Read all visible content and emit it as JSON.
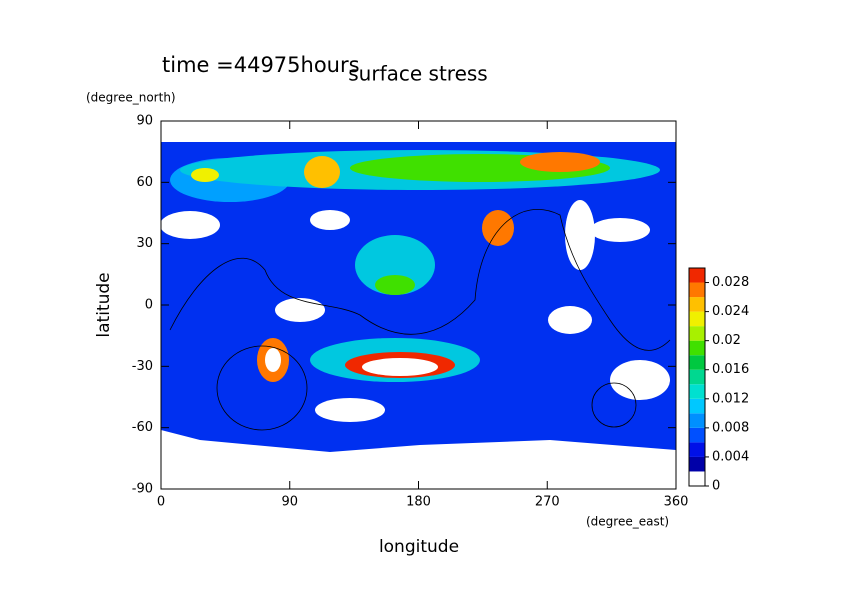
{
  "chart_data": {
    "type": "contour",
    "title": "surface stress",
    "subtitle": "time =44975hours",
    "x_label": "longitude",
    "x_unit": "(degree_east)",
    "y_label": "latitude",
    "y_unit": "(degree_north)",
    "xlim": [
      0,
      360
    ],
    "xticks": [
      0,
      90,
      180,
      270,
      360
    ],
    "ylim": [
      -90,
      90
    ],
    "yticks": [
      -90,
      -60,
      -30,
      0,
      30,
      60,
      90
    ],
    "colorbar": {
      "lim": [
        0,
        0.03
      ],
      "ticks": [
        0,
        0.004,
        0.008,
        0.012,
        0.016,
        0.02,
        0.024,
        0.028
      ],
      "colors": [
        "#ffffff",
        "#0000a8",
        "#0010e8",
        "#0050ff",
        "#0090ff",
        "#00c8ff",
        "#00e0d0",
        "#00d890",
        "#00c840",
        "#40e000",
        "#a8f000",
        "#f0f000",
        "#ffc000",
        "#ff7800",
        "#f02800"
      ]
    }
  }
}
